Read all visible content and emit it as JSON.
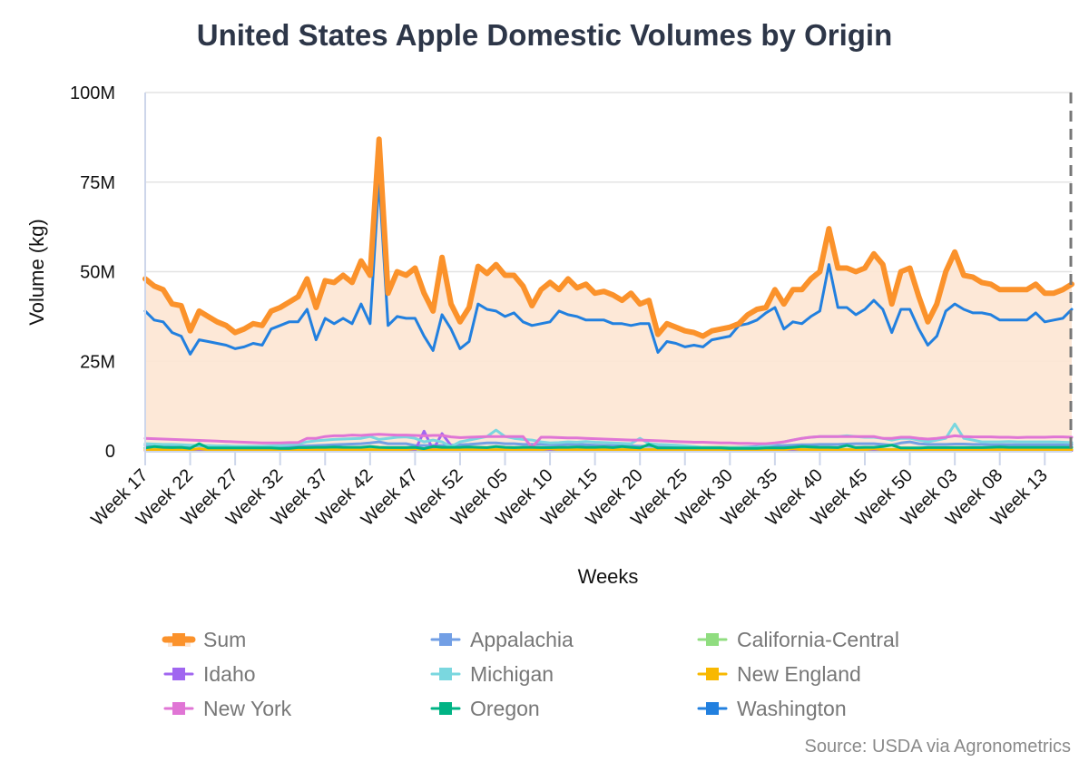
{
  "chart_data": {
    "type": "line",
    "title": "United States Apple Domestic Volumes by Origin",
    "xlabel": "Weeks",
    "ylabel": "Volume (kg)",
    "ylim": [
      0,
      100000000
    ],
    "yticks": [
      "0",
      "25M",
      "50M",
      "75M",
      "100M"
    ],
    "unit_note": "values in millions of kg",
    "grid": true,
    "legend_position": "bottom",
    "source": "Source: USDA via Agronometrics",
    "categories": [
      "Week 17",
      "Week 18",
      "Week 19",
      "Week 20",
      "Week 21",
      "Week 22",
      "Week 23",
      "Week 24",
      "Week 25",
      "Week 26",
      "Week 27",
      "Week 28",
      "Week 29",
      "Week 30",
      "Week 31",
      "Week 32",
      "Week 33",
      "Week 34",
      "Week 35",
      "Week 36",
      "Week 37",
      "Week 38",
      "Week 39",
      "Week 40",
      "Week 41",
      "Week 42",
      "Week 43",
      "Week 44",
      "Week 45",
      "Week 46",
      "Week 47",
      "Week 48",
      "Week 49",
      "Week 50",
      "Week 51",
      "Week 52",
      "Week 01",
      "Week 02",
      "Week 03",
      "Week 04",
      "Week 05",
      "Week 06",
      "Week 07",
      "Week 08",
      "Week 09",
      "Week 10",
      "Week 11",
      "Week 12",
      "Week 13",
      "Week 14",
      "Week 15",
      "Week 16",
      "Week 17",
      "Week 18",
      "Week 19",
      "Week 20",
      "Week 21",
      "Week 22",
      "Week 23",
      "Week 24",
      "Week 25",
      "Week 26",
      "Week 27",
      "Week 28",
      "Week 29",
      "Week 30",
      "Week 31",
      "Week 32",
      "Week 33",
      "Week 34",
      "Week 35",
      "Week 36",
      "Week 37",
      "Week 38",
      "Week 39",
      "Week 40",
      "Week 41",
      "Week 42",
      "Week 43",
      "Week 44",
      "Week 45",
      "Week 46",
      "Week 47",
      "Week 48",
      "Week 49",
      "Week 50",
      "Week 51",
      "Week 52",
      "Week 01",
      "Week 02",
      "Week 03",
      "Week 04",
      "Week 05",
      "Week 06",
      "Week 07",
      "Week 08",
      "Week 09",
      "Week 10",
      "Week 11",
      "Week 12",
      "Week 13",
      "Week 14",
      "Week 15",
      "Week 16"
    ],
    "series": [
      {
        "name": "Sum",
        "color": "#fb922b",
        "values": [
          48,
          46,
          45,
          41,
          40.5,
          33.5,
          39,
          37.5,
          36,
          35,
          33,
          34,
          35.5,
          35,
          39,
          40,
          41.5,
          43,
          48,
          40,
          47.5,
          47,
          49,
          47,
          53,
          49,
          87,
          44,
          50,
          49,
          51,
          44,
          39,
          54,
          41,
          36,
          40,
          51.5,
          49.5,
          52,
          49,
          49,
          46,
          40.5,
          45,
          47,
          45,
          48,
          45.5,
          46.5,
          44,
          44.5,
          43.5,
          42,
          44,
          41,
          42,
          32.5,
          35.5,
          34.5,
          33.5,
          33,
          32,
          33.5,
          34,
          34.5,
          35.5,
          38,
          39.5,
          40,
          45,
          41,
          45,
          45,
          48,
          50,
          62,
          51,
          51,
          50,
          51,
          55,
          52,
          41,
          50,
          51,
          43,
          36,
          41,
          50,
          55.5,
          49,
          48.5,
          47,
          46.5,
          45,
          45,
          45,
          45,
          46.5,
          44,
          44,
          45,
          46.5
        ]
      },
      {
        "name": "Appalachia",
        "color": "#729fe5",
        "values": [
          1.6,
          1.6,
          1.5,
          1.5,
          1.5,
          1.4,
          1.4,
          1.3,
          1.3,
          1.3,
          1.2,
          1.2,
          1.2,
          1.2,
          1.2,
          1.2,
          1.2,
          1.3,
          1.4,
          1.5,
          1.6,
          1.7,
          1.8,
          1.9,
          2.0,
          2.2,
          2.5,
          2.0,
          2.0,
          2.0,
          1.5,
          1.5,
          1.5,
          1.5,
          1.6,
          1.7,
          1.8,
          2.0,
          2.2,
          2.2,
          2.0,
          2.0,
          1.8,
          1.8,
          1.8,
          1.7,
          1.7,
          1.8,
          1.8,
          1.7,
          1.6,
          1.5,
          1.5,
          1.4,
          1.4,
          1.3,
          1.3,
          1.2,
          1.2,
          1.1,
          1.1,
          1.0,
          1.0,
          1.0,
          1.0,
          1.0,
          1.0,
          1.1,
          1.2,
          1.3,
          1.4,
          1.5,
          1.6,
          1.7,
          1.7,
          1.8,
          1.8,
          1.8,
          1.9,
          2.0,
          2.0,
          2.0,
          1.8,
          1.6,
          2.2,
          2.5,
          2.0,
          1.8,
          1.8,
          1.8,
          1.9,
          1.9,
          1.8,
          1.8,
          1.7,
          1.7,
          1.7,
          1.7,
          1.7,
          1.7,
          1.7,
          1.7,
          1.7,
          1.7
        ]
      },
      {
        "name": "California-Central",
        "color": "#90dd80",
        "values": [
          0.4,
          0.4,
          0.4,
          0.4,
          0.4,
          0.4,
          0.4,
          0.4,
          0.4,
          0.4,
          0.4,
          0.4,
          0.4,
          0.4,
          0.4,
          0.4,
          0.4,
          0.4,
          0.4,
          0.4,
          0.4,
          0.4,
          0.4,
          0.4,
          0.4,
          0.4,
          0.4,
          0.4,
          0.4,
          0.4,
          0.4,
          0.4,
          0.4,
          0.4,
          0.4,
          0.4,
          0.4,
          0.4,
          0.4,
          0.4,
          0.4,
          0.4,
          0.4,
          0.4,
          0.4,
          0.4,
          0.4,
          0.4,
          0.4,
          0.4,
          0.4,
          0.4,
          0.4,
          0.4,
          0.4,
          0.4,
          0.4,
          0.4,
          0.4,
          0.4,
          0.9,
          0.9,
          1.0,
          1.0,
          1.0,
          1.0,
          0.9,
          0.9,
          0.8,
          0.7,
          0.5,
          0.4,
          0.4,
          0.4,
          0.4,
          0.4,
          0.4,
          0.4,
          0.4,
          0.4,
          0.4,
          0.4,
          0.4,
          0.4,
          0.4,
          0.4,
          0.4,
          0.4,
          0.4,
          0.4,
          0.4,
          0.4,
          0.4,
          0.4,
          0.4,
          0.4,
          0.4,
          0.4,
          0.4,
          0.4,
          0.4,
          0.4,
          0.4,
          0.4
        ]
      },
      {
        "name": "Idaho",
        "color": "#a066f0",
        "values": [
          0.1,
          0.1,
          0.1,
          0.1,
          0.1,
          0.1,
          0.1,
          0.1,
          0.1,
          0.1,
          0.1,
          0.1,
          0.1,
          0.1,
          0.1,
          0.1,
          0.1,
          0.1,
          0.1,
          0.1,
          0.1,
          0.1,
          0.1,
          0.1,
          0.1,
          0.1,
          0.1,
          0.1,
          0.1,
          0.1,
          0.1,
          5.5,
          0.3,
          4.8,
          1.5,
          0.1,
          0.1,
          0.1,
          0.1,
          0.1,
          0.1,
          0.1,
          0.1,
          0.1,
          0.1,
          0.1,
          0.1,
          0.1,
          0.1,
          0.1,
          0.1,
          0.1,
          0.1,
          0.1,
          0.1,
          0.1,
          0.1,
          0.1,
          0.1,
          0.1,
          0.1,
          0.1,
          0.1,
          0.1,
          0.1,
          0.1,
          0.1,
          0.1,
          0.1,
          0.1,
          0.1,
          0.1,
          0.1,
          0.1,
          0.1,
          0.1,
          0.1,
          0.1,
          0.1,
          0.1,
          0.1,
          0.1,
          0.1,
          0.1,
          0.1,
          0.1,
          0.1,
          0.1,
          0.1,
          0.1,
          0.1,
          0.1,
          0.1,
          0.1,
          0.1,
          0.1,
          0.1,
          0.1,
          0.1,
          0.1,
          0.1,
          0.1,
          0.1,
          0.1
        ]
      },
      {
        "name": "Michigan",
        "color": "#7ad7df",
        "values": [
          2.0,
          1.9,
          1.8,
          1.8,
          1.7,
          1.6,
          1.5,
          1.5,
          1.4,
          1.4,
          1.3,
          1.3,
          1.3,
          1.3,
          1.4,
          1.5,
          1.7,
          1.9,
          2.5,
          2.8,
          3.0,
          3.2,
          3.3,
          3.4,
          3.5,
          4.0,
          3.2,
          3.5,
          3.8,
          3.9,
          3.5,
          2.5,
          3.0,
          2.5,
          1.2,
          2.5,
          3.0,
          3.5,
          4.0,
          5.8,
          4.0,
          3.5,
          3.2,
          3.0,
          2.5,
          2.2,
          2.3,
          2.5,
          2.4,
          2.6,
          2.4,
          2.3,
          2.2,
          2.1,
          2.0,
          3.5,
          2.0,
          1.8,
          1.7,
          1.6,
          1.4,
          1.2,
          1.0,
          0.9,
          0.8,
          0.8,
          0.8,
          0.9,
          1.0,
          1.5,
          2.0,
          2.5,
          3.0,
          3.5,
          3.8,
          4.0,
          4.0,
          4.0,
          4.2,
          4.0,
          3.8,
          3.8,
          3.5,
          3.0,
          3.5,
          3.5,
          3.0,
          2.5,
          3.0,
          3.5,
          7.5,
          3.5,
          3.0,
          2.5,
          2.5,
          2.5,
          2.6,
          2.5,
          2.5,
          2.5,
          2.5,
          2.5,
          2.4,
          2.3
        ]
      },
      {
        "name": "New England",
        "color": "#f8b800",
        "values": [
          0.3,
          0.3,
          0.3,
          0.3,
          0.3,
          0.3,
          0.6,
          0.3,
          0.3,
          0.3,
          0.3,
          0.3,
          0.3,
          0.3,
          0.3,
          0.3,
          0.3,
          0.3,
          0.3,
          0.3,
          0.3,
          0.3,
          0.3,
          0.3,
          0.3,
          0.3,
          0.3,
          0.3,
          0.3,
          0.3,
          0.6,
          0.3,
          0.3,
          0.3,
          0.3,
          0.3,
          0.3,
          0.3,
          0.3,
          0.3,
          0.3,
          0.3,
          0.3,
          0.3,
          0.3,
          0.6,
          0.3,
          0.3,
          0.3,
          0.3,
          0.3,
          0.3,
          0.3,
          0.3,
          0.3,
          0.3,
          0.3,
          0.3,
          0.3,
          0.3,
          0.3,
          0.3,
          0.3,
          0.3,
          0.3,
          0.3,
          0.3,
          0.3,
          0.3,
          0.3,
          0.3,
          0.3,
          0.6,
          0.3,
          0.3,
          0.3,
          0.3,
          0.3,
          0.3,
          0.3,
          0.3,
          0.6,
          0.3,
          0.3,
          0.3,
          0.3,
          0.3,
          0.3,
          0.3,
          0.3,
          0.3,
          0.3,
          0.3,
          0.3,
          0.3,
          0.3,
          0.3,
          0.3,
          0.3,
          0.3,
          0.3,
          0.3,
          0.3,
          0.3
        ]
      },
      {
        "name": "New York",
        "color": "#e075d5",
        "values": [
          3.5,
          3.4,
          3.3,
          3.2,
          3.1,
          3.0,
          2.9,
          2.8,
          2.7,
          2.6,
          2.5,
          2.4,
          2.3,
          2.2,
          2.2,
          2.2,
          2.3,
          2.3,
          3.5,
          3.5,
          4.0,
          4.2,
          4.2,
          4.4,
          4.3,
          4.5,
          4.6,
          4.5,
          4.4,
          4.4,
          4.3,
          4.2,
          4.3,
          4.3,
          3.9,
          3.7,
          3.8,
          3.9,
          4.0,
          4.0,
          4.0,
          4.0,
          4.0,
          1.0,
          3.8,
          3.8,
          3.7,
          3.6,
          3.6,
          3.5,
          3.4,
          3.3,
          3.2,
          3.1,
          3.0,
          3.0,
          2.9,
          2.8,
          2.7,
          2.6,
          2.5,
          2.4,
          2.4,
          2.3,
          2.2,
          2.2,
          2.1,
          2.1,
          2.0,
          2.0,
          2.2,
          2.5,
          3.0,
          3.5,
          3.8,
          4.0,
          4.0,
          4.0,
          4.0,
          4.0,
          4.0,
          4.0,
          3.5,
          3.5,
          3.8,
          3.8,
          3.5,
          3.3,
          3.5,
          3.8,
          4.2,
          4.0,
          3.9,
          3.9,
          3.9,
          3.8,
          3.8,
          3.7,
          3.8,
          3.8,
          3.8,
          3.9,
          3.9,
          3.8
        ]
      },
      {
        "name": "Oregon",
        "color": "#00b384",
        "values": [
          0.8,
          1.2,
          1.0,
          0.9,
          1.0,
          0.7,
          2.0,
          0.8,
          0.8,
          0.8,
          0.8,
          0.8,
          0.8,
          0.8,
          0.8,
          0.7,
          0.7,
          0.9,
          0.9,
          1.0,
          1.0,
          1.1,
          1.0,
          1.0,
          1.0,
          1.2,
          1.0,
          0.9,
          0.9,
          0.9,
          1.0,
          0.6,
          1.2,
          1.0,
          1.0,
          1.0,
          1.1,
          1.0,
          0.9,
          1.2,
          1.0,
          0.9,
          1.0,
          1.0,
          0.9,
          0.9,
          1.0,
          1.0,
          1.1,
          1.0,
          1.0,
          1.1,
          0.9,
          1.2,
          1.0,
          0.8,
          1.8,
          0.8,
          0.8,
          0.8,
          0.8,
          0.8,
          0.8,
          0.8,
          0.8,
          0.7,
          0.7,
          0.7,
          0.7,
          0.8,
          0.8,
          0.8,
          1.0,
          1.2,
          1.1,
          1.0,
          1.0,
          0.9,
          1.5,
          0.9,
          1.0,
          1.0,
          1.2,
          1.6,
          0.8,
          0.8,
          0.8,
          0.9,
          0.9,
          0.9,
          0.9,
          0.9,
          0.9,
          0.9,
          1.0,
          1.1,
          1.0,
          1.0,
          1.0,
          1.0,
          1.0,
          1.0,
          1.0,
          1.0
        ]
      },
      {
        "name": "Washington",
        "color": "#2280df",
        "values": [
          39,
          36.5,
          36,
          33,
          32,
          27,
          31,
          30.5,
          30,
          29.5,
          28.5,
          29,
          30,
          29.5,
          34,
          35,
          36,
          36,
          39.5,
          31,
          37,
          35.5,
          37,
          35.5,
          41,
          35.5,
          76,
          35,
          37.5,
          37,
          37,
          32,
          28,
          38,
          34,
          28.5,
          30.5,
          41,
          39.5,
          39,
          37.5,
          38.5,
          36,
          35,
          35.5,
          36,
          39,
          38,
          37.5,
          36.5,
          36.5,
          36.5,
          35.5,
          35.5,
          35,
          35.5,
          35.5,
          27.5,
          30.5,
          30,
          29,
          29.5,
          29,
          31,
          31.5,
          32,
          35,
          35.5,
          36.5,
          38.5,
          40,
          34,
          36,
          35.5,
          37.5,
          39,
          52,
          40,
          40,
          38,
          39.5,
          42,
          39.5,
          33,
          39.5,
          39.5,
          34,
          29.5,
          32,
          39,
          41,
          39.5,
          38.5,
          38.5,
          38,
          36.5,
          36.5,
          36.5,
          36.5,
          38.5,
          36,
          36.5,
          37,
          39.5
        ]
      }
    ]
  }
}
